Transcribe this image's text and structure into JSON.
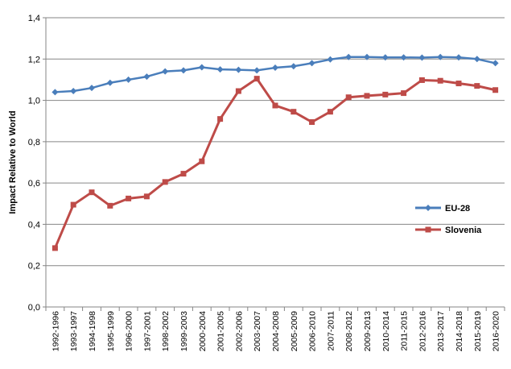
{
  "chart_data": {
    "type": "line",
    "xlabel": "",
    "ylabel": "Impact Relative to World",
    "ylim": [
      0,
      1.4
    ],
    "yticks": [
      "0,0",
      "0,2",
      "0,4",
      "0,6",
      "0,8",
      "1,0",
      "1,2",
      "1,4"
    ],
    "grid": true,
    "legend_position": "right",
    "categories": [
      "1992-1996",
      "1993-1997",
      "1994-1998",
      "1995-1999",
      "1996-2000",
      "1997-2001",
      "1998-2002",
      "1999-2003",
      "2000-2004",
      "2001-2005",
      "2002-2006",
      "2003-2007",
      "2004-2008",
      "2005-2009",
      "2006-2010",
      "2007-2011",
      "2008-2012",
      "2009-2013",
      "2010-2014",
      "2011-2015",
      "2012-2016",
      "2013-2017",
      "2014-2018",
      "2015-2019",
      "2016-2020"
    ],
    "series": [
      {
        "name": "EU-28",
        "color": "#4a7ebb",
        "marker": "diamond",
        "values": [
          1.04,
          1.045,
          1.06,
          1.085,
          1.1,
          1.115,
          1.14,
          1.145,
          1.16,
          1.15,
          1.148,
          1.145,
          1.158,
          1.165,
          1.18,
          1.198,
          1.21,
          1.21,
          1.208,
          1.208,
          1.207,
          1.21,
          1.208,
          1.2,
          1.18
        ]
      },
      {
        "name": "Slovenia",
        "color": "#be4b48",
        "marker": "square",
        "values": [
          0.285,
          0.495,
          0.555,
          0.49,
          0.525,
          0.535,
          0.605,
          0.645,
          0.705,
          0.91,
          1.045,
          1.105,
          0.975,
          0.945,
          0.895,
          0.945,
          1.015,
          1.022,
          1.028,
          1.035,
          1.098,
          1.095,
          1.082,
          1.07,
          1.05
        ]
      }
    ]
  }
}
